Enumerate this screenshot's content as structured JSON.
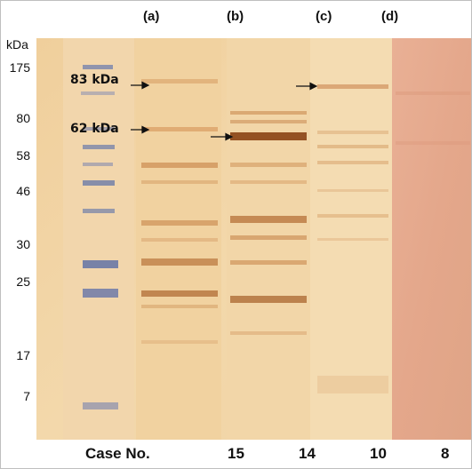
{
  "figure": {
    "panel_labels": [
      "(a)",
      "(b)",
      "(c)",
      "(d)"
    ],
    "mw_unit": "kDa",
    "mw_markers": [
      "175",
      "80",
      "58",
      "46",
      "30",
      "25",
      "17",
      "7"
    ],
    "arrow_labels": [
      "83 kDa",
      "62 kDa"
    ],
    "case_heading": "Case No.",
    "case_numbers": [
      "15",
      "14",
      "10",
      "8"
    ]
  },
  "colors": {
    "membrane_light": "#f1d4a4",
    "membrane_mid": "#e9c08a",
    "band_dark": "#a35a22",
    "ladder_blue": "#5a6fa8",
    "lane_d": "#e5a88c"
  }
}
